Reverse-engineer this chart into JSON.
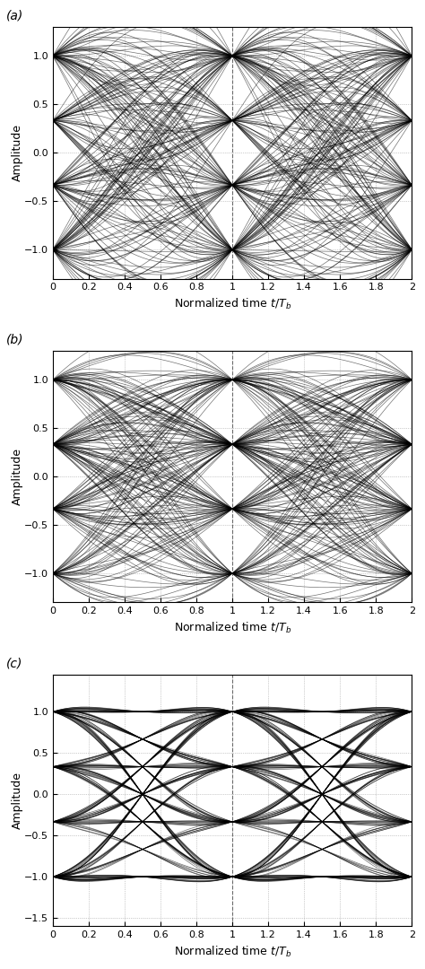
{
  "levels": [
    -1.0,
    -0.3333,
    0.3333,
    1.0
  ],
  "xlim": [
    0,
    2
  ],
  "ylim_a": [
    -1.3,
    1.3
  ],
  "ylim_b": [
    -1.3,
    1.3
  ],
  "ylim_c": [
    -1.6,
    1.45
  ],
  "xticks": [
    0,
    0.2,
    0.4,
    0.6,
    0.8,
    1.0,
    1.2,
    1.4,
    1.6,
    1.8,
    2.0
  ],
  "yticks_a": [
    -1,
    -0.5,
    0,
    0.5,
    1
  ],
  "yticks_b": [
    -1,
    -0.5,
    0,
    0.5,
    1
  ],
  "yticks_c": [
    -1.5,
    -1,
    -0.5,
    0,
    0.5,
    1
  ],
  "xlabel": "Normalized time $t/T_b$",
  "ylabel": "Amplitude",
  "line_color": "#000000",
  "line_width": 0.5,
  "line_alpha": 0.55,
  "subplot_labels": [
    "(a)",
    "(b)",
    "(c)"
  ],
  "figsize": [
    4.74,
    10.8
  ],
  "dpi": 100,
  "sps": 64,
  "filter_spans": 8,
  "n_symbols": 500,
  "n_traces": 200,
  "beta_a": 0.0,
  "beta_b": 0.5,
  "beta_c": 1.0
}
